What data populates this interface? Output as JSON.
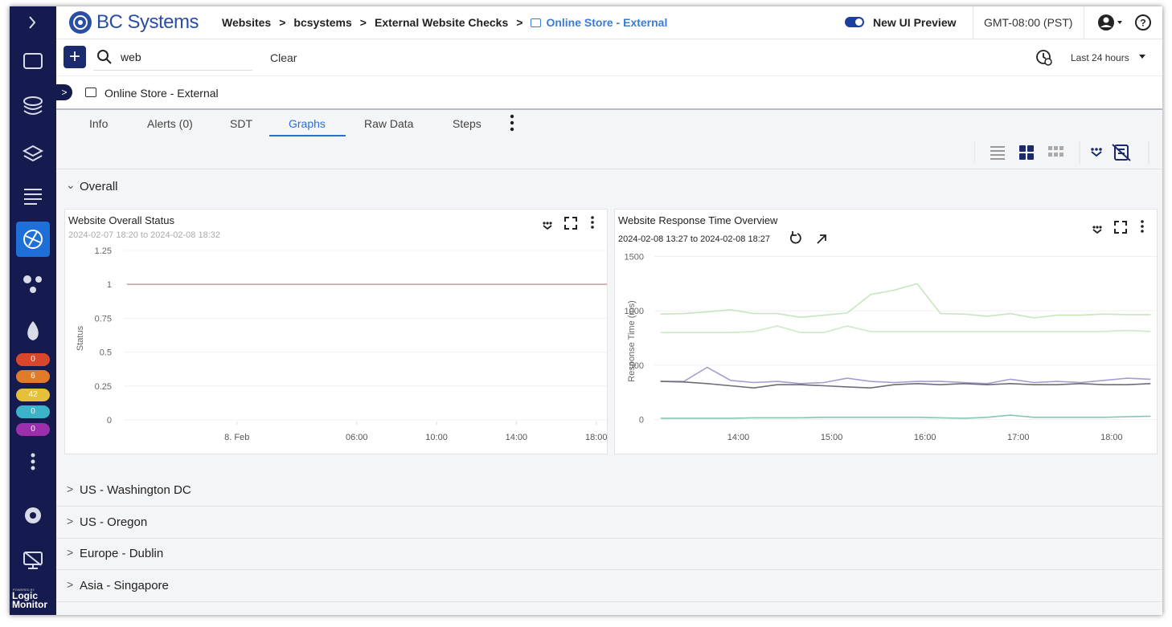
{
  "brand": "BC Systems",
  "breadcrumbs": [
    "Websites",
    "bcsystems",
    "External Website Checks",
    "Online Store - External"
  ],
  "preview_label": "New UI Preview",
  "timezone": "GMT-08:00 (PST)",
  "search": {
    "query": "web",
    "clear": "Clear"
  },
  "time_range": "Last 24 hours",
  "resource": "Online Store - External",
  "tabs": [
    "Info",
    "Alerts (0)",
    "SDT",
    "Graphs",
    "Raw Data",
    "Steps"
  ],
  "sidebar_badges": [
    0,
    6,
    42,
    0,
    0
  ],
  "powered_by": "POWERED BY",
  "vendor": "Logic Monitor",
  "sections": {
    "overall": "Overall",
    "groups": [
      "US - Washington DC",
      "US - Oregon",
      "Europe - Dublin",
      "Asia - Singapore"
    ]
  },
  "chart_data": [
    {
      "type": "line",
      "title": "Website Overall Status",
      "subtitle": "2024-02-07 18:20 to 2024-02-08 18:32",
      "y_label": "Status",
      "x": [
        "2024-02-07 18:30",
        "2024-02-08 18:32"
      ],
      "series": [
        {
          "color": "#c9a3a0",
          "values": [
            1,
            1
          ]
        }
      ],
      "xlim": [
        "2024-02-07 18:20",
        "2024-02-08 18:32"
      ],
      "xticks": [
        {
          "value": "2024-02-08 00:00",
          "label": "8. Feb"
        },
        {
          "value": "2024-02-08 06:00",
          "label": "06:00"
        },
        {
          "value": "2024-02-08 10:00",
          "label": "10:00"
        },
        {
          "value": "2024-02-08 14:00",
          "label": "14:00"
        },
        {
          "value": "2024-02-08 18:00",
          "label": "18:00"
        }
      ],
      "ylim": [
        0,
        1.25
      ],
      "yticks": [
        0,
        0.25,
        0.5,
        0.75,
        1,
        1.25
      ],
      "grid": true
    },
    {
      "type": "line",
      "title": "Website Response Time Overview",
      "subtitle": "2024-02-08 13:27 to 2024-02-08 18:27",
      "y_label": "Response Time (ms)",
      "x": [
        "2024-02-08 13:10",
        "2024-02-08 13:25",
        "2024-02-08 13:40",
        "2024-02-08 13:55",
        "2024-02-08 14:10",
        "2024-02-08 14:25",
        "2024-02-08 14:40",
        "2024-02-08 14:55",
        "2024-02-08 15:10",
        "2024-02-08 15:25",
        "2024-02-08 15:40",
        "2024-02-08 15:55",
        "2024-02-08 16:10",
        "2024-02-08 16:25",
        "2024-02-08 16:40",
        "2024-02-08 16:55",
        "2024-02-08 17:10",
        "2024-02-08 17:25",
        "2024-02-08 17:40",
        "2024-02-08 17:55",
        "2024-02-08 18:10",
        "2024-02-08 18:25"
      ],
      "series": [
        {
          "color": "#c6e6bd",
          "values": [
            970,
            975,
            990,
            1010,
            975,
            975,
            940,
            960,
            980,
            1150,
            1190,
            1250,
            975,
            970,
            950,
            975,
            935,
            960,
            960,
            970,
            965,
            965
          ]
        },
        {
          "color": "#cdeac6",
          "values": [
            800,
            800,
            800,
            800,
            810,
            860,
            800,
            800,
            860,
            810,
            810,
            810,
            810,
            810,
            810,
            810,
            810,
            810,
            810,
            810,
            820,
            810
          ]
        },
        {
          "color": "#a79cd0",
          "values": [
            350,
            350,
            480,
            360,
            340,
            350,
            330,
            340,
            380,
            350,
            340,
            350,
            350,
            340,
            330,
            370,
            340,
            350,
            340,
            360,
            380,
            370
          ]
        },
        {
          "color": "#6d6d78",
          "values": [
            350,
            345,
            330,
            310,
            290,
            320,
            320,
            310,
            300,
            290,
            320,
            330,
            320,
            330,
            320,
            330,
            320,
            320,
            330,
            320,
            320,
            330
          ]
        },
        {
          "color": "#86c7b8",
          "values": [
            10,
            10,
            10,
            10,
            15,
            15,
            15,
            20,
            20,
            20,
            20,
            20,
            15,
            10,
            20,
            40,
            20,
            20,
            20,
            20,
            25,
            30
          ]
        }
      ],
      "xlim": [
        "2024-02-08 13:06",
        "2024-02-08 18:29"
      ],
      "xticks": [
        {
          "value": "2024-02-08 14:00",
          "label": "14:00"
        },
        {
          "value": "2024-02-08 15:00",
          "label": "15:00"
        },
        {
          "value": "2024-02-08 16:00",
          "label": "16:00"
        },
        {
          "value": "2024-02-08 17:00",
          "label": "17:00"
        },
        {
          "value": "2024-02-08 18:00",
          "label": "18:00"
        }
      ],
      "ylim": [
        -100,
        1600
      ],
      "yticks": [
        0,
        500,
        1000,
        1500
      ],
      "grid": true
    }
  ]
}
